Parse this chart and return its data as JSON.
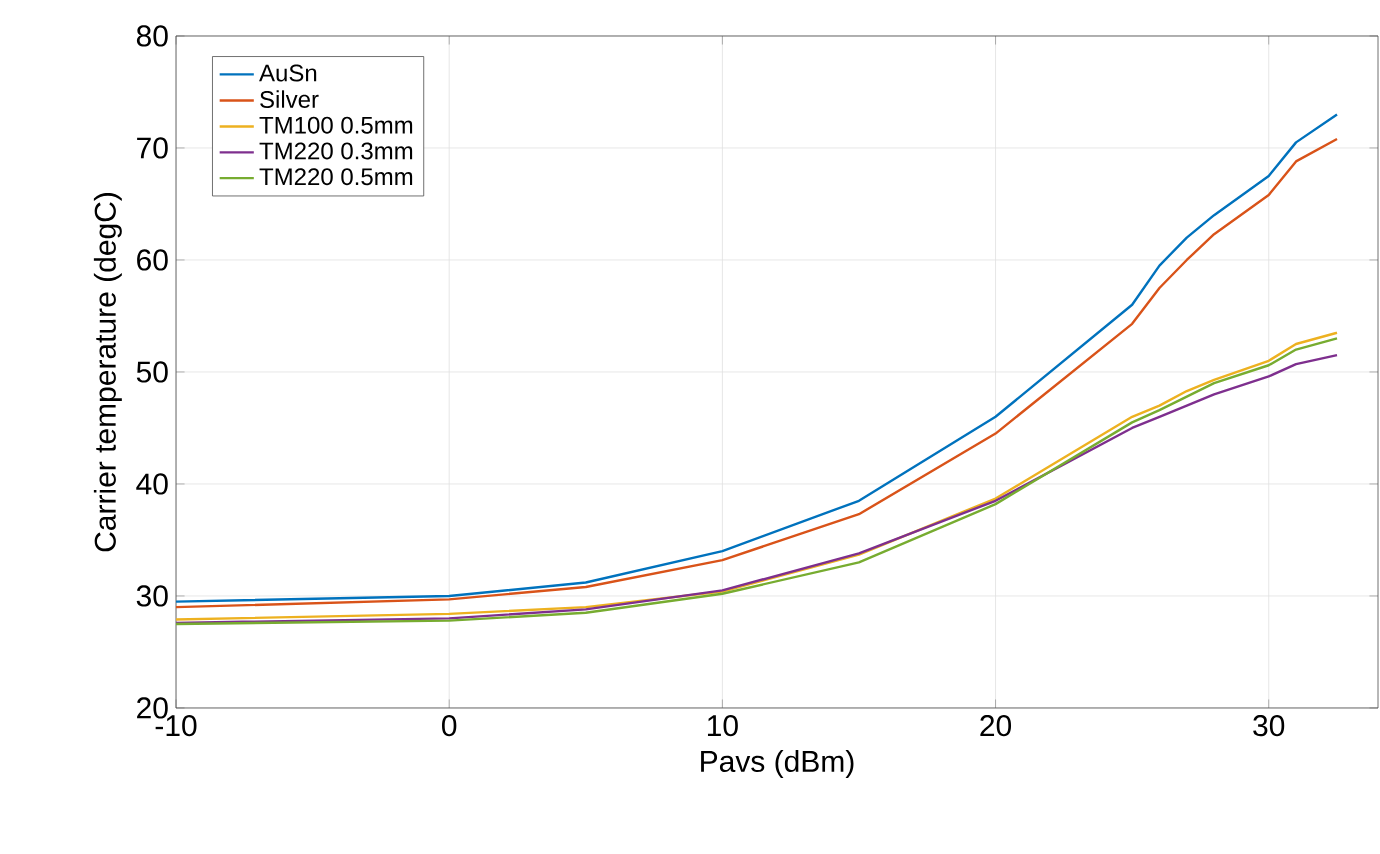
{
  "chart_data": {
    "type": "line",
    "xlabel": "Pavs (dBm)",
    "ylabel": "Carrier temperature (degC)",
    "x": [
      -10,
      0,
      5,
      10,
      15,
      20,
      25,
      26,
      27,
      28,
      30,
      31,
      32.5
    ],
    "series": [
      {
        "name": "AuSn",
        "color": "#0072bd",
        "values": [
          29.5,
          30,
          31.2,
          34,
          38.5,
          46,
          56,
          59.5,
          62,
          64,
          67.5,
          70.5,
          73
        ]
      },
      {
        "name": "Silver",
        "color": "#d95319",
        "values": [
          29,
          29.7,
          30.8,
          33.2,
          37.3,
          44.5,
          54.3,
          57.5,
          60,
          62.3,
          65.8,
          68.8,
          70.8
        ]
      },
      {
        "name": "TM100 0.5mm",
        "color": "#edb120",
        "values": [
          27.9,
          28.4,
          29,
          30.4,
          33.7,
          38.7,
          46,
          47,
          48.3,
          49.3,
          51,
          52.5,
          53.5
        ]
      },
      {
        "name": "TM220 0.3mm",
        "color": "#7e2f8e",
        "values": [
          27.6,
          28,
          28.8,
          30.5,
          33.8,
          38.5,
          45,
          46,
          47,
          48,
          49.6,
          50.7,
          51.5
        ]
      },
      {
        "name": "TM220 0.5mm",
        "color": "#77ac30",
        "values": [
          27.5,
          27.8,
          28.5,
          30.2,
          33,
          38.2,
          45.5,
          46.6,
          47.8,
          49,
          50.6,
          52,
          53
        ]
      }
    ],
    "xlim": [
      -10,
      34
    ],
    "ylim": [
      20,
      80
    ],
    "xticks": [
      -10,
      0,
      10,
      20,
      30
    ],
    "yticks": [
      20,
      30,
      40,
      50,
      60,
      70,
      80
    ],
    "grid": true,
    "legend": "top left",
    "line_style": "solid",
    "marker": "none"
  }
}
